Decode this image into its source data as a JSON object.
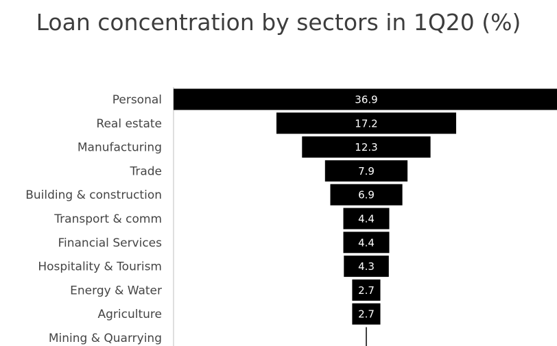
{
  "chart_data": {
    "type": "bar",
    "orientation": "horizontal-centered",
    "title": "Loan concentration by sectors in 1Q20 (%)",
    "categories": [
      "Personal",
      "Real estate",
      "Manufacturing",
      "Trade",
      "Building & construction",
      "Transport & comm",
      "Financial Services",
      "Hospitality & Tourism",
      "Energy & Water",
      "Agriculture",
      "Mining & Quarrying"
    ],
    "values": [
      36.9,
      17.2,
      12.3,
      7.9,
      6.9,
      4.4,
      4.4,
      4.3,
      2.7,
      2.7,
      0.0
    ],
    "data_labels": [
      "36.9",
      "17.2",
      "12.3",
      "7.9",
      "6.9",
      "4.4",
      "4.4",
      "4.3",
      "2.7",
      "2.7",
      ""
    ],
    "bar_color": "#000000",
    "label_color": "#ffffff",
    "grid": false,
    "legend": "none"
  }
}
